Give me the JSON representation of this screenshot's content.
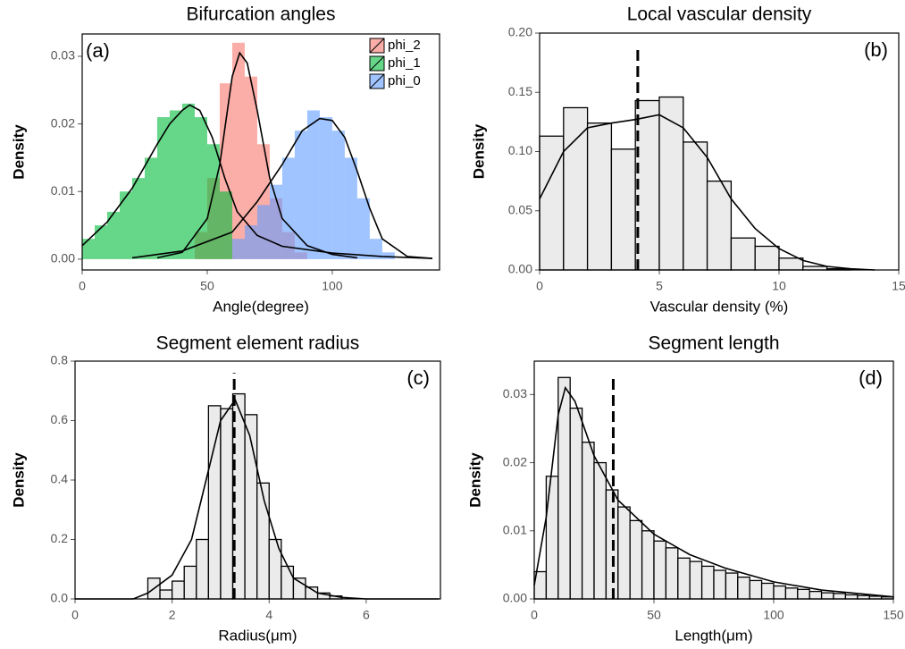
{
  "chart_data": [
    {
      "type": "histogram",
      "title": "Bifurcation angles",
      "panel_label": "(a)",
      "xlabel": "Angle(degree)",
      "ylabel": "Density",
      "xlim": [
        0,
        142.9
      ],
      "ylim": [
        -0.0016,
        0.0333
      ],
      "xticks": [
        0,
        50,
        100
      ],
      "yticks": [
        {
          "value": 0,
          "label": "0.00"
        },
        {
          "value": 0.01,
          "label": "0.01"
        },
        {
          "value": 0.02,
          "label": "0.02"
        },
        {
          "value": 0.03,
          "label": "0.03"
        }
      ],
      "legend": "upper right",
      "series": [
        {
          "name": "phi_2",
          "color": "#f8766d",
          "bins": [
            45,
            50,
            55,
            60,
            65,
            70,
            75,
            80,
            85,
            90
          ],
          "values": [
            0.004,
            0.012,
            0.026,
            0.032,
            0.027,
            0.017,
            0.009,
            0.004,
            0.001
          ],
          "curve_x": [
            30,
            40,
            50,
            55,
            60,
            63,
            66,
            70,
            75,
            80,
            90,
            100,
            110
          ],
          "curve_y": [
            0.0002,
            0.001,
            0.006,
            0.014,
            0.027,
            0.0305,
            0.029,
            0.022,
            0.012,
            0.006,
            0.002,
            0.0007,
            0.0002
          ]
        },
        {
          "name": "phi_1",
          "color": "#00ba38",
          "bins": [
            0,
            5,
            10,
            15,
            20,
            25,
            30,
            35,
            40,
            45,
            50,
            55,
            60
          ],
          "values": [
            0.003,
            0.005,
            0.007,
            0.01,
            0.012,
            0.015,
            0.021,
            0.022,
            0.023,
            0.021,
            0.017,
            0.01
          ],
          "curve_x": [
            0,
            10,
            20,
            30,
            35,
            40,
            43,
            47,
            52,
            57,
            62,
            70,
            80,
            100,
            120,
            140
          ],
          "curve_y": [
            0.002,
            0.0055,
            0.0105,
            0.017,
            0.02,
            0.022,
            0.0228,
            0.022,
            0.018,
            0.012,
            0.007,
            0.0035,
            0.0019,
            0.0009,
            0.0004,
            0.0001
          ]
        },
        {
          "name": "phi_0",
          "color": "#619cff",
          "bins": [
            60,
            65,
            70,
            75,
            80,
            85,
            90,
            95,
            100,
            105,
            110,
            115,
            120,
            125
          ],
          "values": [
            0.003,
            0.005,
            0.008,
            0.011,
            0.015,
            0.019,
            0.022,
            0.021,
            0.019,
            0.015,
            0.009,
            0.003,
            0.001
          ],
          "curve_x": [
            20,
            40,
            60,
            70,
            80,
            88,
            95,
            100,
            105,
            110,
            115,
            120,
            130,
            140
          ],
          "curve_y": [
            0.0002,
            0.0012,
            0.004,
            0.0085,
            0.014,
            0.019,
            0.0208,
            0.0205,
            0.018,
            0.013,
            0.0075,
            0.003,
            0.0004,
            0.0001
          ]
        }
      ]
    },
    {
      "type": "histogram",
      "title": "Local vascular density",
      "panel_label": "(b)",
      "xlabel": "Vascular density (%)",
      "ylabel": "Density",
      "xlim": [
        0,
        15
      ],
      "ylim": [
        0,
        0.2
      ],
      "xticks": [
        0,
        5,
        10,
        15
      ],
      "yticks": [
        {
          "value": 0,
          "label": "0.00"
        },
        {
          "value": 0.05,
          "label": "0.05"
        },
        {
          "value": 0.1,
          "label": "0.10"
        },
        {
          "value": 0.15,
          "label": "0.15"
        },
        {
          "value": 0.2,
          "label": "0.20"
        }
      ],
      "ref_x": 4.1,
      "ref_top": 0.19,
      "series": [
        {
          "color": "#ebebeb",
          "bins": [
            0,
            1,
            2,
            3,
            4,
            5,
            6,
            7,
            8,
            9,
            10,
            11,
            12,
            13
          ],
          "values": [
            0.113,
            0.137,
            0.124,
            0.102,
            0.143,
            0.146,
            0.108,
            0.075,
            0.027,
            0.02,
            0.01,
            0.003,
            0.001
          ],
          "curve_x": [
            0,
            1,
            2,
            3,
            4,
            5,
            6,
            7,
            8,
            9,
            10,
            11,
            12,
            13,
            14
          ],
          "curve_y": [
            0.06,
            0.1,
            0.12,
            0.124,
            0.127,
            0.131,
            0.12,
            0.095,
            0.06,
            0.035,
            0.018,
            0.008,
            0.003,
            0.001,
            0
          ]
        }
      ]
    },
    {
      "type": "histogram",
      "title": "Segment element radius",
      "panel_label": "(c)",
      "xlabel": "Radius(μm)",
      "ylabel": "Density",
      "xlim": [
        0,
        7.53
      ],
      "ylim": [
        0,
        0.8
      ],
      "xticks": [
        0,
        2,
        4,
        6
      ],
      "yticks": [
        {
          "value": 0,
          "label": "0.0"
        },
        0.2,
        0.4,
        0.6,
        0.8
      ],
      "ref_x": 3.28,
      "ref_top": 0.76,
      "series": [
        {
          "color": "#ebebeb",
          "bins": [
            1.5,
            1.75,
            2,
            2.25,
            2.5,
            2.75,
            3,
            3.25,
            3.5,
            3.75,
            4,
            4.25,
            4.5,
            4.75,
            5,
            5.25,
            5.5
          ],
          "values": [
            0.07,
            0.03,
            0.06,
            0.11,
            0.2,
            0.65,
            0.64,
            0.69,
            0.62,
            0.39,
            0.2,
            0.11,
            0.07,
            0.04,
            0.02,
            0.01
          ],
          "curve_x": [
            0,
            1.2,
            1.5,
            2,
            2.4,
            2.7,
            3,
            3.3,
            3.6,
            3.9,
            4.2,
            4.5,
            5,
            5.5,
            6,
            7.5
          ],
          "curve_y": [
            0,
            0,
            0.02,
            0.08,
            0.2,
            0.4,
            0.6,
            0.67,
            0.55,
            0.33,
            0.17,
            0.07,
            0.02,
            0.005,
            0,
            0
          ]
        }
      ]
    },
    {
      "type": "histogram",
      "title": "Segment length",
      "panel_label": "(d)",
      "xlabel": "Length(μm)",
      "ylabel": "Density",
      "xlim": [
        0,
        150
      ],
      "ylim": [
        0,
        0.0349
      ],
      "xticks": [
        0,
        50,
        100,
        150
      ],
      "yticks": [
        {
          "value": 0,
          "label": "0.00"
        },
        {
          "value": 0.01,
          "label": "0.01"
        },
        {
          "value": 0.02,
          "label": "0.02"
        },
        {
          "value": 0.03,
          "label": "0.03"
        }
      ],
      "ref_x": 33,
      "ref_top": 0.033,
      "series": [
        {
          "color": "#ebebeb",
          "bins": [
            0,
            5,
            10,
            15,
            20,
            25,
            30,
            35,
            40,
            45,
            50,
            55,
            60,
            65,
            70,
            75,
            80,
            85,
            90,
            95,
            100,
            105,
            110,
            115,
            120,
            125,
            130,
            135,
            140,
            145,
            150
          ],
          "values": [
            0.004,
            0.018,
            0.0325,
            0.028,
            0.023,
            0.02,
            0.016,
            0.0135,
            0.0115,
            0.01,
            0.0085,
            0.0075,
            0.006,
            0.0055,
            0.0048,
            0.0042,
            0.0038,
            0.0032,
            0.0027,
            0.0023,
            0.0019,
            0.0016,
            0.0014,
            0.0011,
            0.0009,
            0.0008,
            0.0006,
            0.0005,
            0.0004,
            0.0003
          ],
          "curve_x": [
            0,
            5,
            10,
            13,
            17,
            25,
            35,
            50,
            65,
            80,
            100,
            120,
            150
          ],
          "curve_y": [
            0.002,
            0.012,
            0.027,
            0.031,
            0.029,
            0.021,
            0.0145,
            0.0095,
            0.0065,
            0.0045,
            0.0025,
            0.0013,
            0.0003
          ]
        }
      ]
    }
  ]
}
